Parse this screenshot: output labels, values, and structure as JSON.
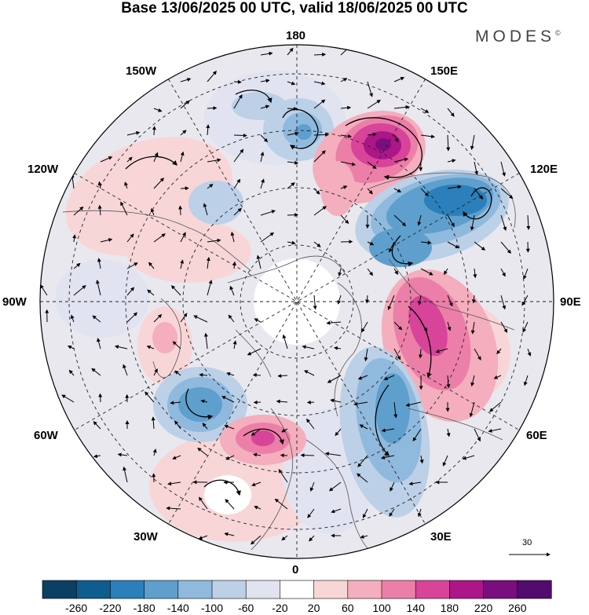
{
  "title": "Base 13/06/2025 00 UTC, valid 18/06/2025 00 UTC",
  "brand": "MODES",
  "brand_mark": "©",
  "longitude_labels": {
    "lon_180": "180",
    "lon_150w": "150W",
    "lon_150e": "150E",
    "lon_120w": "120W",
    "lon_120e": "120E",
    "lon_90w": "90W",
    "lon_90e": "90E",
    "lon_60w": "60W",
    "lon_60e": "60E",
    "lon_30w": "30W",
    "lon_30e": "30E",
    "lon_0": "0"
  },
  "vector_scale": {
    "value": "30"
  },
  "colorbar": {
    "labels": [
      "-260",
      "-220",
      "-180",
      "-140",
      "-100",
      "-60",
      "-20",
      "20",
      "60",
      "100",
      "140",
      "180",
      "220",
      "260"
    ],
    "colors": [
      "#0b3f63",
      "#0f5c8e",
      "#2b7fba",
      "#5e9fcd",
      "#8fb9dd",
      "#bcd0e7",
      "#e2e3f1",
      "#ffffff",
      "#f8d6d8",
      "#f4aebd",
      "#ec7fa8",
      "#d8449a",
      "#ac1689",
      "#7a0e7e",
      "#520b6e"
    ]
  }
}
